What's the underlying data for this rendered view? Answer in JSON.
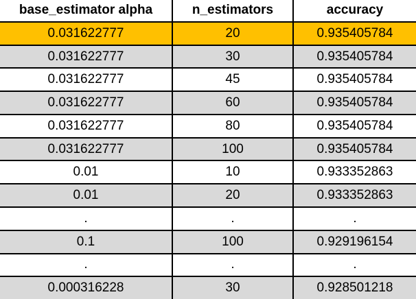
{
  "table": {
    "headers": [
      "base_estimator alpha",
      "n_estimators",
      "accuracy"
    ],
    "highlight_color": "#ffc000",
    "rows": [
      [
        "0.031622777",
        "20",
        "0.935405784"
      ],
      [
        "0.031622777",
        "30",
        "0.935405784"
      ],
      [
        "0.031622777",
        "45",
        "0.935405784"
      ],
      [
        "0.031622777",
        "60",
        "0.935405784"
      ],
      [
        "0.031622777",
        "80",
        "0.935405784"
      ],
      [
        "0.031622777",
        "100",
        "0.935405784"
      ],
      [
        "0.01",
        "10",
        "0.933352863"
      ],
      [
        "0.01",
        "20",
        "0.933352863"
      ],
      [
        ".",
        ".",
        "."
      ],
      [
        "0.1",
        "100",
        "0.929196154"
      ],
      [
        ".",
        ".",
        "."
      ],
      [
        "0.000316228",
        "30",
        "0.928501218"
      ]
    ]
  }
}
